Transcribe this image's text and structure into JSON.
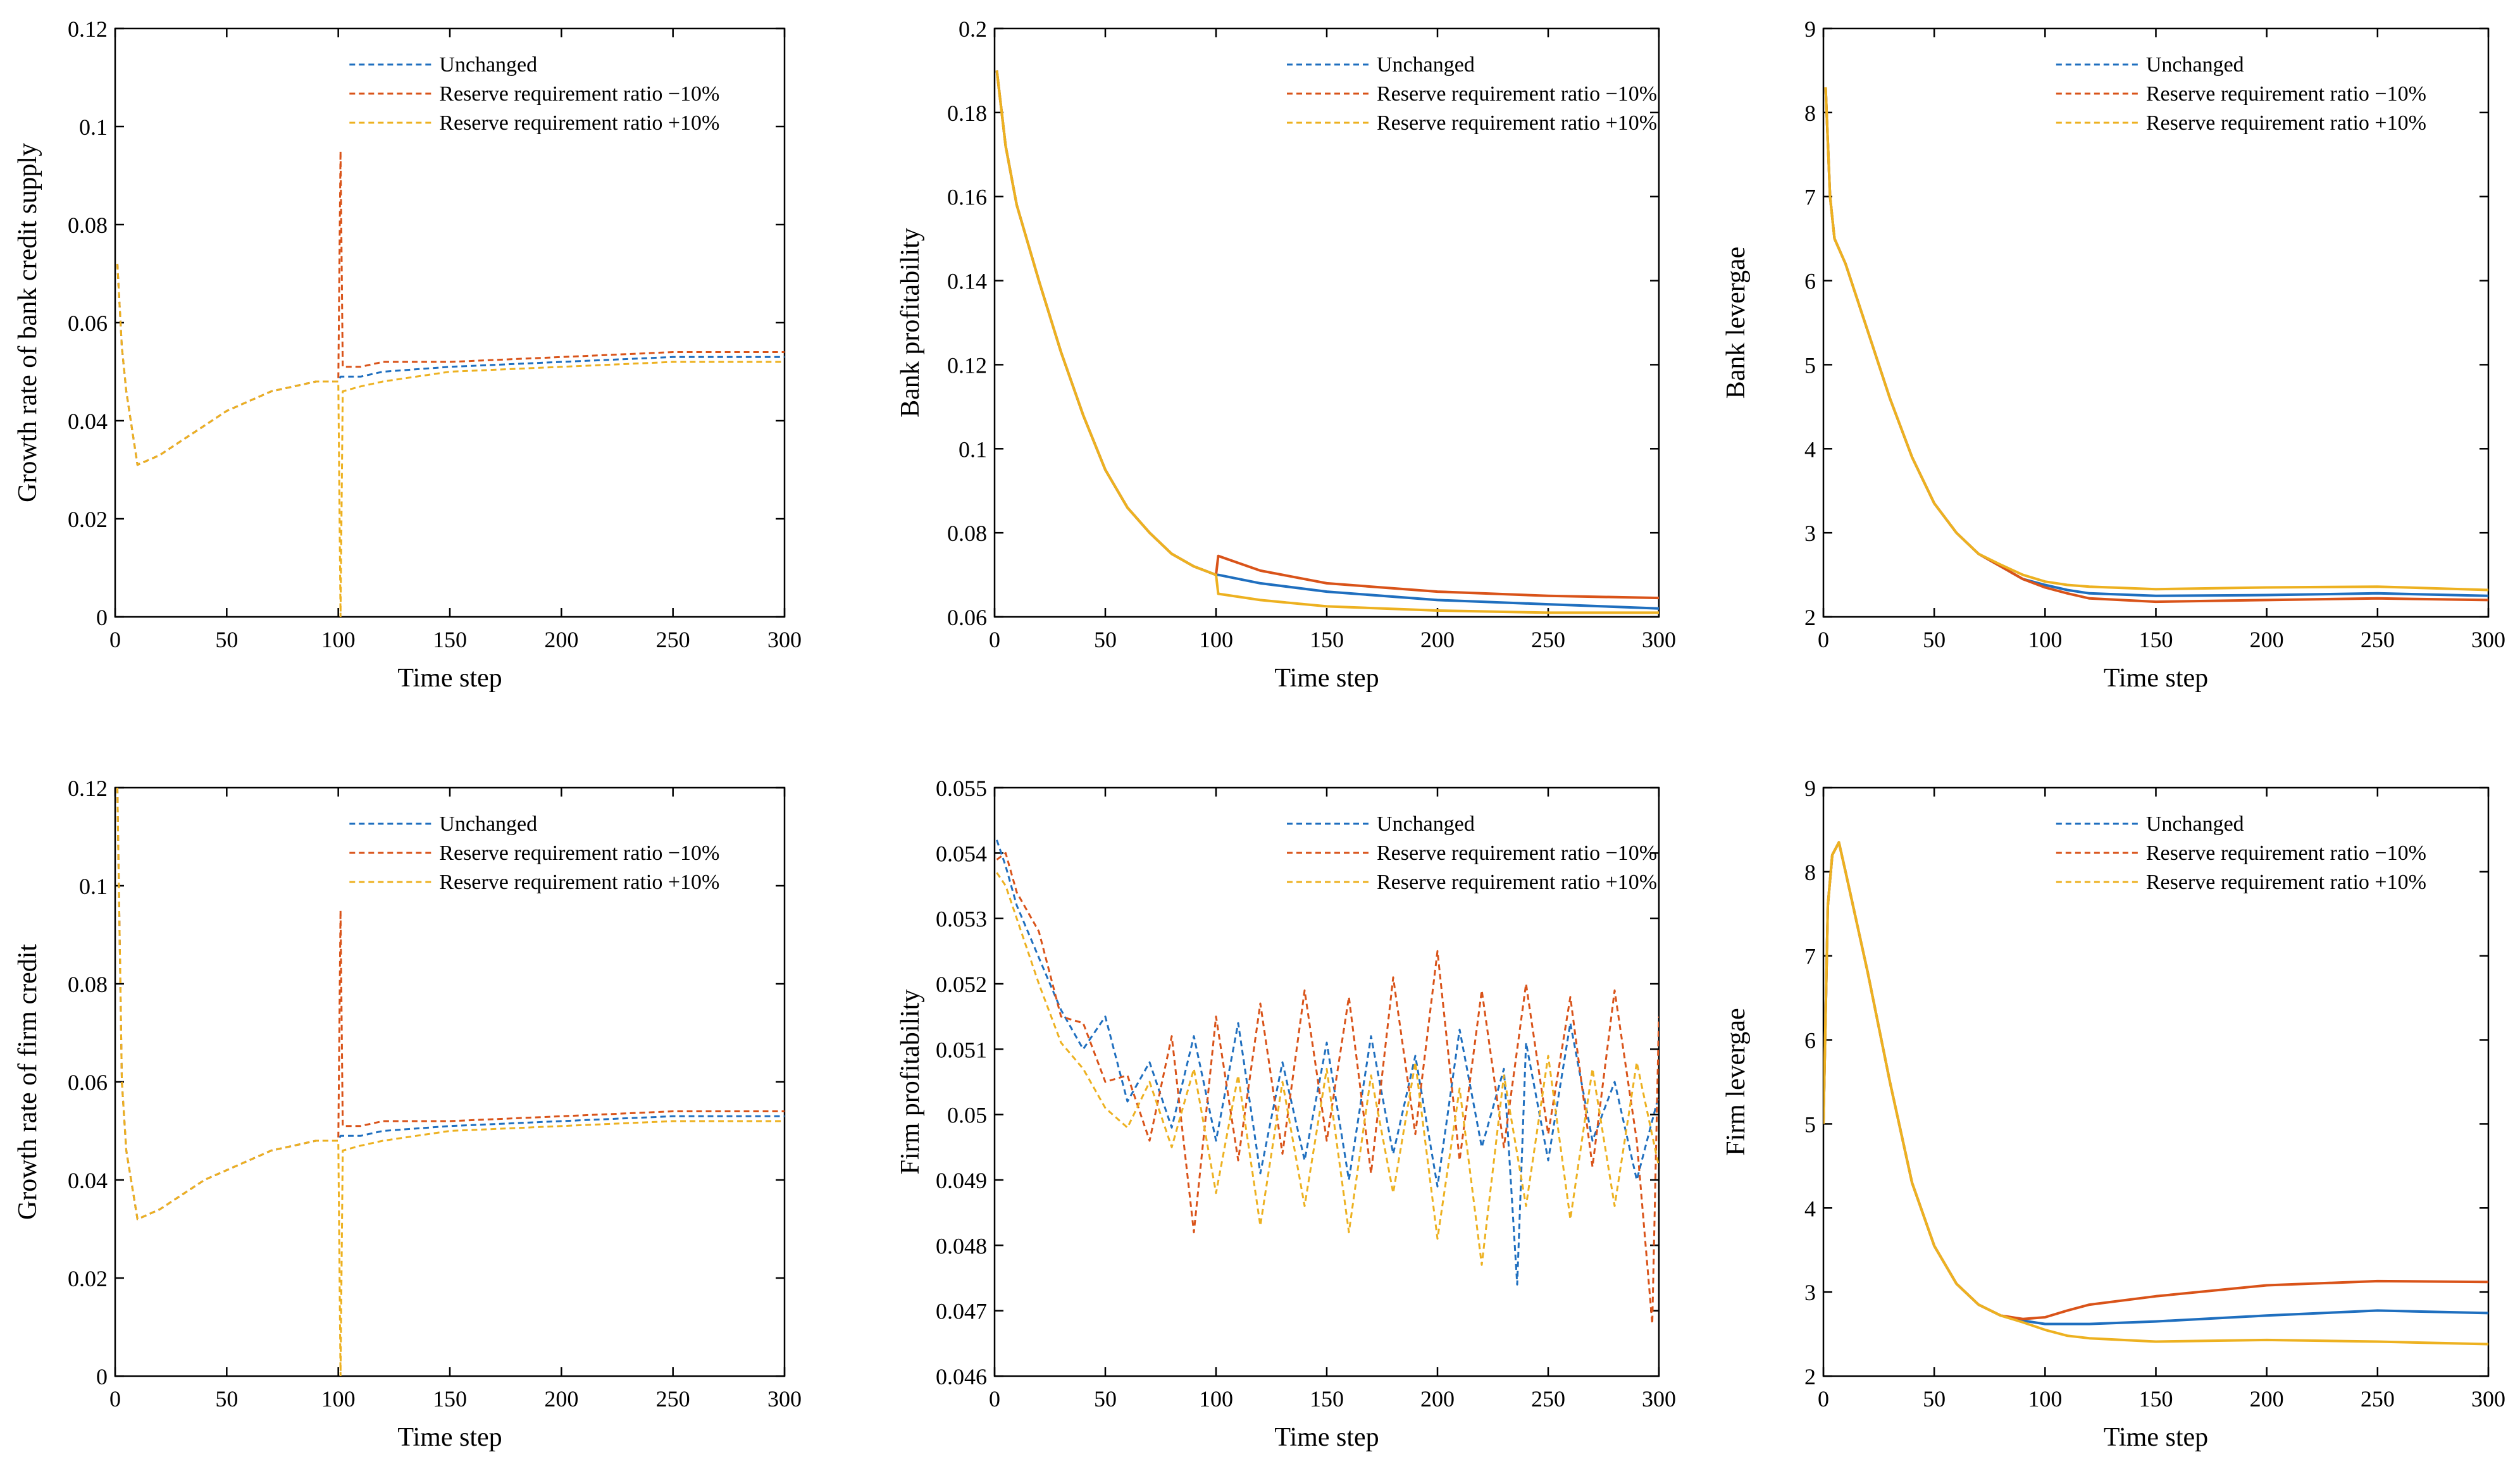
{
  "figure": {
    "legend_labels": [
      "Unchanged",
      "Reserve requirement ratio −10%",
      "Reserve requirement ratio +10%"
    ],
    "series_colors": [
      "#1f6fbf",
      "#d95319",
      "#edb120"
    ]
  },
  "chart_data": [
    {
      "type": "line",
      "xlabel": "Time step",
      "ylabel": "Growth rate of bank credit supply",
      "xlim": [
        0,
        300
      ],
      "ylim": [
        0,
        0.12
      ],
      "xticks": [
        "0",
        "50",
        "100",
        "150",
        "200",
        "250",
        "300"
      ],
      "yticks": [
        "0",
        "0.02",
        "0.04",
        "0.06",
        "0.08",
        "0.1",
        "0.12"
      ],
      "legend_position": "top-right",
      "grid": false,
      "style": "dashed",
      "series": [
        {
          "name": "Unchanged",
          "x": [
            1,
            3,
            5,
            10,
            20,
            30,
            40,
            50,
            60,
            70,
            80,
            90,
            100,
            101,
            110,
            120,
            150,
            200,
            250,
            300
          ],
          "y": [
            0.072,
            0.055,
            0.046,
            0.031,
            0.033,
            0.036,
            0.039,
            0.042,
            0.044,
            0.046,
            0.047,
            0.048,
            0.048,
            0.049,
            0.049,
            0.05,
            0.051,
            0.052,
            0.053,
            0.053
          ]
        },
        {
          "name": "Reserve requirement ratio −10%",
          "x": [
            1,
            3,
            5,
            10,
            20,
            30,
            40,
            50,
            60,
            70,
            80,
            90,
            100,
            101,
            102,
            110,
            120,
            150,
            200,
            250,
            300
          ],
          "y": [
            0.072,
            0.055,
            0.046,
            0.031,
            0.033,
            0.036,
            0.039,
            0.042,
            0.044,
            0.046,
            0.047,
            0.048,
            0.048,
            0.095,
            0.051,
            0.051,
            0.052,
            0.052,
            0.053,
            0.054,
            0.054
          ]
        },
        {
          "name": "Reserve requirement ratio +10%",
          "x": [
            1,
            3,
            5,
            10,
            20,
            30,
            40,
            50,
            60,
            70,
            80,
            90,
            100,
            101,
            102,
            110,
            120,
            150,
            200,
            250,
            300
          ],
          "y": [
            0.072,
            0.055,
            0.046,
            0.031,
            0.033,
            0.036,
            0.039,
            0.042,
            0.044,
            0.046,
            0.047,
            0.048,
            0.048,
            0.0,
            0.046,
            0.047,
            0.048,
            0.05,
            0.051,
            0.052,
            0.052
          ]
        }
      ]
    },
    {
      "type": "line",
      "xlabel": "Time step",
      "ylabel": "Bank profitability",
      "xlim": [
        0,
        300
      ],
      "ylim": [
        0.06,
        0.2
      ],
      "xticks": [
        "0",
        "50",
        "100",
        "150",
        "200",
        "250",
        "300"
      ],
      "yticks": [
        "0.06",
        "0.08",
        "0.1",
        "0.12",
        "0.14",
        "0.16",
        "0.18",
        "0.2"
      ],
      "legend_position": "top-right",
      "grid": false,
      "style": "solid",
      "series": [
        {
          "name": "Unchanged",
          "x": [
            1,
            5,
            10,
            20,
            30,
            40,
            50,
            60,
            70,
            80,
            90,
            100,
            101,
            120,
            150,
            200,
            250,
            300
          ],
          "y": [
            0.19,
            0.172,
            0.158,
            0.14,
            0.123,
            0.108,
            0.095,
            0.086,
            0.08,
            0.075,
            0.072,
            0.07,
            0.07,
            0.068,
            0.066,
            0.064,
            0.063,
            0.062
          ]
        },
        {
          "name": "Reserve requirement ratio −10%",
          "x": [
            1,
            5,
            10,
            20,
            30,
            40,
            50,
            60,
            70,
            80,
            90,
            100,
            101,
            120,
            150,
            200,
            250,
            300
          ],
          "y": [
            0.19,
            0.172,
            0.158,
            0.14,
            0.123,
            0.108,
            0.095,
            0.086,
            0.08,
            0.075,
            0.072,
            0.07,
            0.0745,
            0.071,
            0.068,
            0.066,
            0.065,
            0.0645
          ]
        },
        {
          "name": "Reserve requirement ratio +10%",
          "x": [
            1,
            5,
            10,
            20,
            30,
            40,
            50,
            60,
            70,
            80,
            90,
            100,
            101,
            120,
            150,
            200,
            250,
            300
          ],
          "y": [
            0.19,
            0.172,
            0.158,
            0.14,
            0.123,
            0.108,
            0.095,
            0.086,
            0.08,
            0.075,
            0.072,
            0.07,
            0.0655,
            0.064,
            0.0625,
            0.0615,
            0.061,
            0.061
          ]
        }
      ]
    },
    {
      "type": "line",
      "xlabel": "Time step",
      "ylabel": "Bank levergae",
      "xlim": [
        0,
        300
      ],
      "ylim": [
        2,
        9
      ],
      "xticks": [
        "0",
        "50",
        "100",
        "150",
        "200",
        "250",
        "300"
      ],
      "yticks": [
        "2",
        "3",
        "4",
        "5",
        "6",
        "7",
        "8",
        "9"
      ],
      "legend_position": "top-right",
      "grid": false,
      "style": "solid",
      "series": [
        {
          "name": "Unchanged",
          "x": [
            1,
            3,
            5,
            10,
            20,
            30,
            40,
            50,
            60,
            70,
            80,
            90,
            100,
            110,
            120,
            150,
            200,
            250,
            300
          ],
          "y": [
            8.3,
            7.0,
            6.5,
            6.2,
            5.4,
            4.6,
            3.9,
            3.35,
            3.0,
            2.75,
            2.6,
            2.45,
            2.38,
            2.32,
            2.28,
            2.25,
            2.26,
            2.28,
            2.25
          ]
        },
        {
          "name": "Reserve requirement ratio −10%",
          "x": [
            1,
            3,
            5,
            10,
            20,
            30,
            40,
            50,
            60,
            70,
            80,
            90,
            100,
            110,
            120,
            150,
            200,
            250,
            300
          ],
          "y": [
            8.3,
            7.0,
            6.5,
            6.2,
            5.4,
            4.6,
            3.9,
            3.35,
            3.0,
            2.75,
            2.6,
            2.45,
            2.35,
            2.28,
            2.22,
            2.18,
            2.2,
            2.22,
            2.2
          ]
        },
        {
          "name": "Reserve requirement ratio +10%",
          "x": [
            1,
            3,
            5,
            10,
            20,
            30,
            40,
            50,
            60,
            70,
            80,
            90,
            100,
            110,
            120,
            150,
            200,
            250,
            300
          ],
          "y": [
            8.3,
            7.0,
            6.5,
            6.2,
            5.4,
            4.6,
            3.9,
            3.35,
            3.0,
            2.75,
            2.62,
            2.5,
            2.42,
            2.38,
            2.36,
            2.33,
            2.35,
            2.36,
            2.32
          ]
        }
      ]
    },
    {
      "type": "line",
      "xlabel": "Time step",
      "ylabel": "Growth rate of firm credit",
      "xlim": [
        0,
        300
      ],
      "ylim": [
        0,
        0.12
      ],
      "xticks": [
        "0",
        "50",
        "100",
        "150",
        "200",
        "250",
        "300"
      ],
      "yticks": [
        "0",
        "0.02",
        "0.04",
        "0.06",
        "0.08",
        "0.1",
        "0.12"
      ],
      "legend_position": "top-right",
      "grid": false,
      "style": "dashed",
      "series": [
        {
          "name": "Unchanged",
          "x": [
            1,
            3,
            5,
            10,
            20,
            30,
            40,
            50,
            60,
            70,
            80,
            90,
            100,
            101,
            110,
            120,
            150,
            200,
            250,
            300
          ],
          "y": [
            0.12,
            0.06,
            0.046,
            0.032,
            0.034,
            0.037,
            0.04,
            0.042,
            0.044,
            0.046,
            0.047,
            0.048,
            0.048,
            0.049,
            0.049,
            0.05,
            0.051,
            0.052,
            0.053,
            0.053
          ]
        },
        {
          "name": "Reserve requirement ratio −10%",
          "x": [
            1,
            3,
            5,
            10,
            20,
            30,
            40,
            50,
            60,
            70,
            80,
            90,
            100,
            101,
            102,
            110,
            120,
            150,
            200,
            250,
            300
          ],
          "y": [
            0.12,
            0.06,
            0.046,
            0.032,
            0.034,
            0.037,
            0.04,
            0.042,
            0.044,
            0.046,
            0.047,
            0.048,
            0.048,
            0.095,
            0.051,
            0.051,
            0.052,
            0.052,
            0.053,
            0.054,
            0.054
          ]
        },
        {
          "name": "Reserve requirement ratio +10%",
          "x": [
            1,
            3,
            5,
            10,
            20,
            30,
            40,
            50,
            60,
            70,
            80,
            90,
            100,
            101,
            102,
            110,
            120,
            150,
            200,
            250,
            300
          ],
          "y": [
            0.12,
            0.06,
            0.046,
            0.032,
            0.034,
            0.037,
            0.04,
            0.042,
            0.044,
            0.046,
            0.047,
            0.048,
            0.048,
            0.0,
            0.046,
            0.047,
            0.048,
            0.05,
            0.051,
            0.052,
            0.052
          ]
        }
      ]
    },
    {
      "type": "line",
      "xlabel": "Time step",
      "ylabel": "Firm profitability",
      "xlim": [
        0,
        300
      ],
      "ylim": [
        0.046,
        0.055
      ],
      "xticks": [
        "0",
        "50",
        "100",
        "150",
        "200",
        "250",
        "300"
      ],
      "yticks": [
        "0.046",
        "0.047",
        "0.048",
        "0.049",
        "0.05",
        "0.051",
        "0.052",
        "0.053",
        "0.054",
        "0.055"
      ],
      "legend_position": "top-right",
      "grid": false,
      "style": "dashed",
      "series": [
        {
          "name": "Unchanged",
          "x": [
            1,
            5,
            10,
            20,
            30,
            40,
            50,
            60,
            70,
            80,
            90,
            100,
            110,
            120,
            130,
            140,
            150,
            160,
            170,
            180,
            190,
            200,
            210,
            220,
            230,
            236,
            240,
            250,
            260,
            270,
            280,
            290,
            300
          ],
          "y": [
            0.0542,
            0.0538,
            0.0532,
            0.0524,
            0.0516,
            0.051,
            0.0515,
            0.0502,
            0.0508,
            0.0498,
            0.0512,
            0.0496,
            0.0514,
            0.0491,
            0.0508,
            0.0493,
            0.0511,
            0.049,
            0.0512,
            0.0494,
            0.0509,
            0.0489,
            0.0513,
            0.0495,
            0.0507,
            0.0474,
            0.0511,
            0.0493,
            0.0514,
            0.0496,
            0.0505,
            0.049,
            0.0503
          ]
        },
        {
          "name": "Reserve requirement ratio −10%",
          "x": [
            1,
            5,
            10,
            20,
            30,
            40,
            50,
            60,
            70,
            80,
            90,
            100,
            110,
            120,
            130,
            140,
            150,
            160,
            170,
            180,
            190,
            200,
            210,
            220,
            230,
            240,
            250,
            260,
            270,
            280,
            290,
            297,
            300
          ],
          "y": [
            0.0539,
            0.054,
            0.0534,
            0.0528,
            0.0515,
            0.0514,
            0.0505,
            0.0506,
            0.0496,
            0.0512,
            0.0482,
            0.0515,
            0.0493,
            0.0517,
            0.0494,
            0.0519,
            0.0496,
            0.0518,
            0.0491,
            0.0521,
            0.0497,
            0.0525,
            0.0493,
            0.0519,
            0.0495,
            0.052,
            0.0497,
            0.0518,
            0.0492,
            0.0519,
            0.0496,
            0.0468,
            0.0515
          ]
        },
        {
          "name": "Reserve requirement ratio +10%",
          "x": [
            1,
            5,
            10,
            20,
            30,
            40,
            50,
            60,
            70,
            80,
            90,
            100,
            110,
            120,
            130,
            140,
            150,
            160,
            170,
            180,
            190,
            200,
            210,
            220,
            230,
            240,
            250,
            260,
            270,
            280,
            290,
            300
          ],
          "y": [
            0.0537,
            0.0535,
            0.053,
            0.052,
            0.0511,
            0.0507,
            0.0501,
            0.0498,
            0.0505,
            0.0495,
            0.0507,
            0.0488,
            0.0506,
            0.0483,
            0.0505,
            0.0486,
            0.0507,
            0.0482,
            0.0506,
            0.0488,
            0.0508,
            0.0481,
            0.0504,
            0.0477,
            0.0506,
            0.0486,
            0.0509,
            0.0484,
            0.0507,
            0.0486,
            0.0508,
            0.0492
          ]
        }
      ]
    },
    {
      "type": "line",
      "xlabel": "Time step",
      "ylabel": "Firm levergae",
      "xlim": [
        0,
        300
      ],
      "ylim": [
        2,
        9
      ],
      "xticks": [
        "0",
        "50",
        "100",
        "150",
        "200",
        "250",
        "300"
      ],
      "yticks": [
        "2",
        "3",
        "4",
        "5",
        "6",
        "7",
        "8",
        "9"
      ],
      "legend_position": "top-right",
      "grid": false,
      "style": "solid",
      "series": [
        {
          "name": "Unchanged",
          "x": [
            0,
            2,
            4,
            7,
            10,
            20,
            30,
            40,
            50,
            60,
            70,
            80,
            90,
            100,
            110,
            120,
            150,
            200,
            250,
            300
          ],
          "y": [
            5.0,
            7.6,
            8.2,
            8.35,
            8.0,
            6.8,
            5.5,
            4.3,
            3.55,
            3.1,
            2.85,
            2.72,
            2.66,
            2.62,
            2.62,
            2.62,
            2.65,
            2.72,
            2.78,
            2.75
          ]
        },
        {
          "name": "Reserve requirement ratio −10%",
          "x": [
            0,
            2,
            4,
            7,
            10,
            20,
            30,
            40,
            50,
            60,
            70,
            80,
            90,
            100,
            110,
            120,
            150,
            200,
            250,
            300
          ],
          "y": [
            5.0,
            7.6,
            8.2,
            8.35,
            8.0,
            6.8,
            5.5,
            4.3,
            3.55,
            3.1,
            2.85,
            2.72,
            2.68,
            2.7,
            2.78,
            2.85,
            2.95,
            3.08,
            3.13,
            3.12
          ]
        },
        {
          "name": "Reserve requirement ratio +10%",
          "x": [
            0,
            2,
            4,
            7,
            10,
            20,
            30,
            40,
            50,
            60,
            70,
            80,
            90,
            100,
            110,
            120,
            150,
            200,
            250,
            300
          ],
          "y": [
            5.0,
            7.6,
            8.2,
            8.35,
            8.0,
            6.8,
            5.5,
            4.3,
            3.55,
            3.1,
            2.85,
            2.72,
            2.64,
            2.55,
            2.48,
            2.45,
            2.41,
            2.43,
            2.41,
            2.38
          ]
        }
      ]
    }
  ]
}
